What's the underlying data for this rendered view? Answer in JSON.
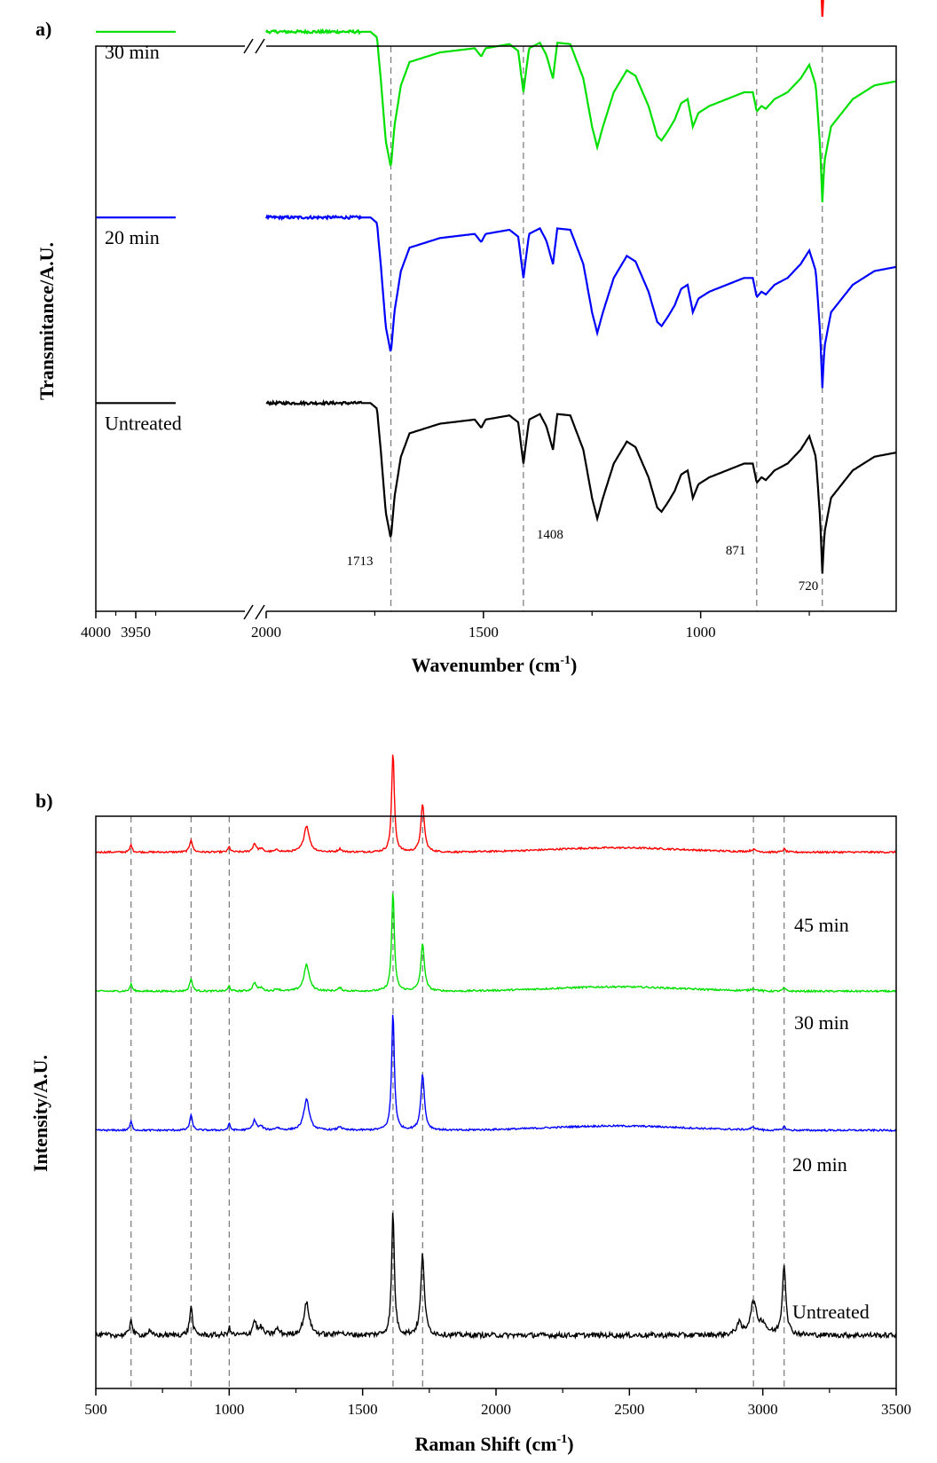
{
  "chart_data": [
    {
      "panel_label": "a)",
      "type": "line",
      "xlabel": "Wavenumber (cm",
      "xlabel_sup": "-1",
      "xlabel_close": ")",
      "ylabel": "Transmitance/A.U.",
      "x_axis_broken": true,
      "x_segments": [
        {
          "range": [
            4000,
            3900
          ],
          "ticks": [
            4000,
            3950
          ]
        },
        {
          "range": [
            2000,
            550
          ],
          "ticks": [
            2000,
            1500,
            1000
          ]
        }
      ],
      "reference_lines": [
        1713,
        1408,
        871,
        720
      ],
      "peak_labels": [
        "1713",
        "1408",
        "871",
        "720"
      ],
      "series": [
        {
          "name": "45 min",
          "color": "#ff0000",
          "offset": 4.05
        },
        {
          "name": "30 min",
          "color": "#00e000",
          "offset": 2.7
        },
        {
          "name": "20 min",
          "color": "#0000ff",
          "offset": 1.35
        },
        {
          "name": "Untreated",
          "color": "#000000",
          "offset": 0
        }
      ],
      "profile_points": [
        [
          2000,
          0.94
        ],
        [
          1800,
          0.94
        ],
        [
          1760,
          0.94
        ],
        [
          1745,
          0.9
        ],
        [
          1735,
          0.55
        ],
        [
          1725,
          0.15
        ],
        [
          1713,
          -0.05
        ],
        [
          1705,
          0.25
        ],
        [
          1690,
          0.55
        ],
        [
          1670,
          0.72
        ],
        [
          1600,
          0.79
        ],
        [
          1520,
          0.82
        ],
        [
          1505,
          0.76
        ],
        [
          1495,
          0.82
        ],
        [
          1440,
          0.85
        ],
        [
          1420,
          0.8
        ],
        [
          1408,
          0.5
        ],
        [
          1395,
          0.82
        ],
        [
          1370,
          0.86
        ],
        [
          1355,
          0.77
        ],
        [
          1340,
          0.6
        ],
        [
          1330,
          0.86
        ],
        [
          1300,
          0.85
        ],
        [
          1270,
          0.6
        ],
        [
          1250,
          0.25
        ],
        [
          1238,
          0.1
        ],
        [
          1225,
          0.25
        ],
        [
          1200,
          0.5
        ],
        [
          1170,
          0.66
        ],
        [
          1150,
          0.62
        ],
        [
          1120,
          0.4
        ],
        [
          1100,
          0.18
        ],
        [
          1090,
          0.15
        ],
        [
          1075,
          0.22
        ],
        [
          1060,
          0.3
        ],
        [
          1045,
          0.42
        ],
        [
          1030,
          0.45
        ],
        [
          1018,
          0.25
        ],
        [
          1005,
          0.35
        ],
        [
          980,
          0.4
        ],
        [
          940,
          0.45
        ],
        [
          900,
          0.5
        ],
        [
          880,
          0.5
        ],
        [
          871,
          0.36
        ],
        [
          860,
          0.4
        ],
        [
          850,
          0.38
        ],
        [
          830,
          0.45
        ],
        [
          800,
          0.5
        ],
        [
          770,
          0.6
        ],
        [
          750,
          0.7
        ],
        [
          735,
          0.55
        ],
        [
          725,
          0.1
        ],
        [
          720,
          -0.3
        ],
        [
          715,
          0.0
        ],
        [
          700,
          0.25
        ],
        [
          650,
          0.45
        ],
        [
          600,
          0.55
        ],
        [
          550,
          0.58
        ]
      ]
    },
    {
      "panel_label": "b)",
      "type": "line",
      "xlabel": "Raman Shift (cm",
      "xlabel_sup": "-1",
      "xlabel_close": ")",
      "ylabel": "Intensity/A.U.",
      "xlim": [
        500,
        3500
      ],
      "xticks": [
        500,
        1000,
        1500,
        2000,
        2500,
        3000,
        3500
      ],
      "reference_lines": [
        632,
        857,
        1000,
        1614,
        1725,
        2965,
        3080
      ],
      "series": [
        {
          "name": "45 min",
          "color": "#ff0000",
          "baseline": 3.3,
          "scale": 0.72
        },
        {
          "name": "30 min",
          "color": "#00e000",
          "baseline": 2.35,
          "scale": 0.72
        },
        {
          "name": "20 min",
          "color": "#0000ff",
          "baseline": 1.4,
          "scale": 0.85
        },
        {
          "name": "Untreated",
          "color": "#000000",
          "baseline": 0,
          "scale": 1.0
        }
      ],
      "peaks_treated": [
        [
          632,
          0.07,
          5
        ],
        [
          857,
          0.12,
          6
        ],
        [
          1000,
          0.05,
          5
        ],
        [
          1095,
          0.08,
          8
        ],
        [
          1120,
          0.03,
          8
        ],
        [
          1180,
          0.02,
          10
        ],
        [
          1290,
          0.25,
          12
        ],
        [
          1415,
          0.03,
          8
        ],
        [
          1614,
          0.95,
          6
        ],
        [
          1725,
          0.45,
          8
        ],
        [
          2965,
          0.02,
          12
        ],
        [
          3080,
          0.03,
          6
        ]
      ],
      "peaks_untreated": [
        [
          632,
          0.12,
          5
        ],
        [
          700,
          0.03,
          6
        ],
        [
          857,
          0.2,
          6
        ],
        [
          1000,
          0.05,
          5
        ],
        [
          1095,
          0.1,
          8
        ],
        [
          1120,
          0.05,
          8
        ],
        [
          1180,
          0.04,
          10
        ],
        [
          1290,
          0.22,
          12
        ],
        [
          1415,
          0.03,
          8
        ],
        [
          1614,
          0.85,
          6
        ],
        [
          1725,
          0.55,
          8
        ],
        [
          2910,
          0.08,
          10
        ],
        [
          2965,
          0.22,
          14
        ],
        [
          3000,
          0.07,
          15
        ],
        [
          3080,
          0.48,
          8
        ]
      ]
    }
  ]
}
